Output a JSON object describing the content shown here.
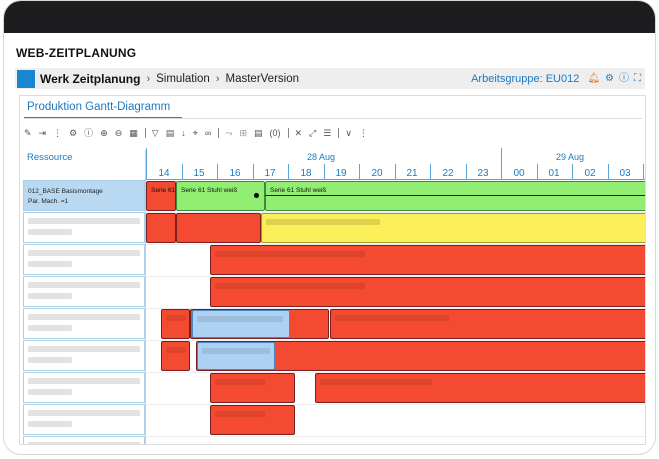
{
  "app_title": "WEB-ZEITPLANUNG",
  "breadcrumb": {
    "root": "Werk Zeitplanung",
    "level2": "Simulation",
    "level3": "MasterVersion"
  },
  "header_right": {
    "group_link": "Arbeitsgruppe: EU012",
    "icons": [
      "bell-icon",
      "settings-icon",
      "info-icon",
      "fullscreen-icon"
    ]
  },
  "panel": {
    "tab_label": "Produktion Gantt-Diagramm",
    "toolbar_count": "(0)"
  },
  "gantt": {
    "resource_header": "Ressource",
    "dates": [
      "28 Aug",
      "29 Aug"
    ],
    "hours": [
      "14",
      "15",
      "16",
      "17",
      "18",
      "19",
      "20",
      "21",
      "22",
      "23",
      "00",
      "01",
      "02",
      "03"
    ],
    "resources": [
      {
        "line1": "012_BASE Basismontage",
        "line2": "Par. Mach. =1"
      }
    ],
    "bar_labels": {
      "row1_red": "Serie 61",
      "row1_green_a": "Serie 61 Stuhl weiß",
      "row1_green_b": "Serie 61 Stuhl weiß"
    }
  },
  "colors": {
    "accent": "#1a86d0",
    "red_bar": "#f44a32",
    "green_bar": "#91ee72",
    "yellow_bar": "#fbef59",
    "blue_bar": "#aed1f3"
  }
}
